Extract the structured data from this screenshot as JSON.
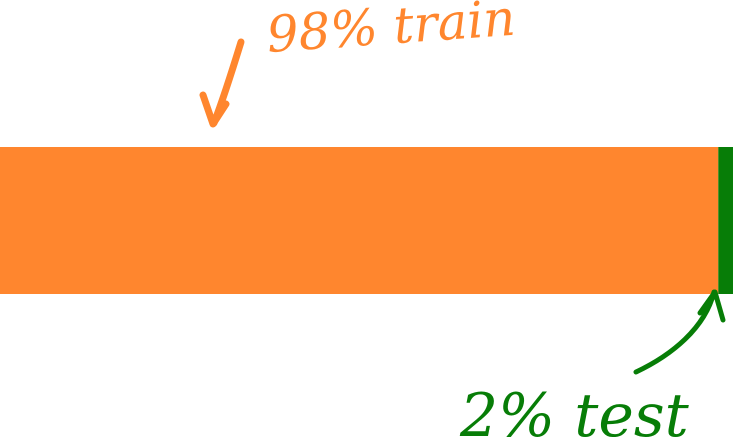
{
  "colors": {
    "train": "#FF862E",
    "test": "#077D07",
    "background": "#FFFFFF"
  },
  "split": {
    "train_fraction": 0.98,
    "test_fraction": 0.02
  },
  "labels": {
    "train": "98% train",
    "test": "2% test"
  }
}
